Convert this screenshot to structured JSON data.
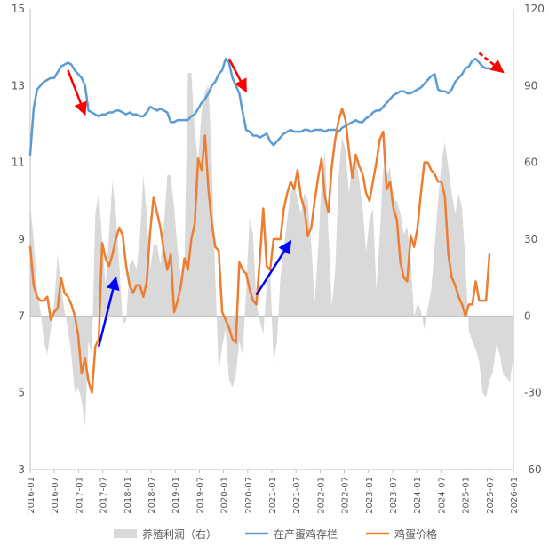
{
  "chart_data": {
    "type": "combo",
    "x_labels": [
      "2016-01",
      "2016-07",
      "2017-01",
      "2017-07",
      "2018-01",
      "2018-07",
      "2019-01",
      "2019-07",
      "2020-01",
      "2020-07",
      "2021-01",
      "2021-07",
      "2022-01",
      "2022-07",
      "2023-01",
      "2023-07",
      "2024-01",
      "2024-07",
      "2025-01",
      "2025-07",
      "2026-01"
    ],
    "left_axis": {
      "min": 3,
      "max": 15,
      "ticks": [
        3,
        5,
        7,
        9,
        11,
        13,
        15
      ]
    },
    "right_axis": {
      "min": -60,
      "max": 120,
      "ticks": [
        -60,
        -30,
        0,
        30,
        60,
        90,
        120
      ]
    },
    "series": [
      {
        "name": "养殖利润（右）",
        "type": "area",
        "axis": "right",
        "color": "#d9d9d9",
        "values": [
          43,
          30,
          10,
          2,
          -10,
          -15,
          -5,
          5,
          24,
          12,
          2,
          -5,
          -15,
          -30,
          -28,
          -33,
          -43,
          -10,
          -15,
          40,
          48,
          30,
          12,
          32,
          53,
          40,
          20,
          -3,
          -2,
          20,
          22,
          18,
          30,
          55,
          40,
          18,
          28,
          28,
          20,
          35,
          55,
          55,
          42,
          26,
          15,
          20,
          95,
          95,
          72,
          60,
          80,
          88,
          90,
          60,
          15,
          -22,
          -12,
          -5,
          -25,
          -28,
          -23,
          -10,
          -15,
          10,
          38,
          32,
          5,
          -2,
          -7,
          12,
          18,
          -18,
          -10,
          15,
          27,
          38,
          48,
          52,
          46,
          40,
          48,
          45,
          28,
          5,
          26,
          52,
          65,
          33,
          4,
          18,
          55,
          70,
          65,
          48,
          60,
          62,
          53,
          42,
          25,
          38,
          42,
          10,
          32,
          58,
          55,
          58,
          45,
          45,
          40,
          32,
          35,
          22,
          0,
          5,
          2,
          -5,
          3,
          10,
          27,
          45,
          60,
          68,
          58,
          48,
          40,
          48,
          42,
          20,
          -6,
          -10,
          -13,
          -18,
          -30,
          -32,
          -25,
          -22,
          -11,
          -15,
          -23,
          -24,
          -26,
          -15
        ]
      },
      {
        "name": "在产蛋鸡存栏",
        "type": "line",
        "axis": "left",
        "color": "#5b9bd5",
        "values": [
          11.2,
          12.4,
          12.9,
          13.0,
          13.1,
          13.15,
          13.2,
          13.2,
          13.35,
          13.5,
          13.55,
          13.6,
          13.55,
          13.4,
          13.3,
          13.2,
          13.0,
          12.35,
          12.3,
          12.25,
          12.2,
          12.25,
          12.25,
          12.3,
          12.3,
          12.35,
          12.35,
          12.3,
          12.25,
          12.3,
          12.25,
          12.25,
          12.2,
          12.2,
          12.3,
          12.45,
          12.4,
          12.35,
          12.4,
          12.35,
          12.3,
          12.05,
          12.05,
          12.1,
          12.1,
          12.1,
          12.1,
          12.2,
          12.25,
          12.4,
          12.55,
          12.65,
          12.8,
          13.0,
          13.1,
          13.3,
          13.4,
          13.7,
          13.6,
          13.2,
          13.0,
          12.8,
          12.3,
          11.85,
          11.8,
          11.7,
          11.7,
          11.65,
          11.7,
          11.75,
          11.55,
          11.45,
          11.55,
          11.65,
          11.75,
          11.8,
          11.85,
          11.8,
          11.8,
          11.8,
          11.85,
          11.85,
          11.8,
          11.85,
          11.85,
          11.85,
          11.8,
          11.85,
          11.85,
          11.85,
          11.8,
          11.9,
          11.95,
          12.0,
          12.05,
          12.1,
          12.05,
          12.05,
          12.15,
          12.2,
          12.3,
          12.35,
          12.35,
          12.45,
          12.55,
          12.65,
          12.75,
          12.8,
          12.85,
          12.85,
          12.8,
          12.8,
          12.85,
          12.9,
          12.95,
          13.05,
          13.15,
          13.25,
          13.3,
          12.9,
          12.85,
          12.85,
          12.8,
          12.9,
          13.1,
          13.2,
          13.3,
          13.45,
          13.5,
          13.65,
          13.7,
          13.6,
          13.5,
          13.45,
          13.45
        ]
      },
      {
        "name": "鸡蛋价格",
        "type": "line",
        "axis": "left",
        "color": "#ed7d31",
        "values": [
          8.8,
          7.8,
          7.5,
          7.4,
          7.4,
          7.5,
          6.9,
          7.1,
          7.2,
          8.0,
          7.6,
          7.5,
          7.3,
          7.0,
          6.5,
          5.5,
          5.9,
          5.3,
          5.0,
          6.2,
          6.4,
          8.9,
          8.5,
          8.3,
          8.6,
          9.0,
          9.3,
          9.1,
          8.3,
          7.8,
          7.6,
          7.8,
          7.8,
          7.5,
          7.9,
          9.2,
          10.1,
          9.7,
          9.3,
          8.7,
          8.2,
          8.6,
          7.1,
          7.4,
          7.8,
          8.5,
          8.2,
          9.0,
          9.4,
          11.1,
          10.8,
          11.7,
          10.3,
          9.4,
          8.8,
          8.7,
          7.1,
          6.9,
          6.7,
          6.4,
          6.3,
          8.4,
          8.2,
          8.1,
          7.7,
          7.4,
          7.3,
          8.5,
          9.8,
          8.3,
          8.2,
          9.0,
          9.0,
          9.0,
          9.8,
          10.2,
          10.5,
          10.3,
          10.8,
          10.1,
          9.8,
          9.1,
          9.3,
          10.0,
          10.6,
          11.1,
          10.1,
          9.7,
          10.9,
          11.6,
          12.1,
          12.4,
          12.1,
          11.3,
          10.6,
          11.2,
          10.9,
          10.7,
          10.2,
          10.0,
          10.5,
          11.0,
          11.6,
          11.8,
          10.3,
          10.5,
          9.8,
          9.5,
          8.4,
          8.0,
          7.9,
          9.1,
          8.8,
          9.3,
          10.2,
          11.0,
          11.0,
          10.8,
          10.7,
          10.5,
          10.5,
          10.1,
          8.6,
          8.0,
          7.8,
          7.5,
          7.3,
          7.0,
          7.3,
          7.3,
          7.9,
          7.4,
          7.4,
          7.4,
          8.6
        ]
      }
    ],
    "annotations": [
      {
        "type": "arrow",
        "color": "#ff0000",
        "style": "solid",
        "x1": 11,
        "y1": 13.4,
        "x2": 16,
        "y2": 12.25
      },
      {
        "type": "arrow",
        "color": "#0000ff",
        "style": "solid",
        "x1": 20,
        "y1": 6.2,
        "x2": 25,
        "y2": 8.0
      },
      {
        "type": "arrow",
        "color": "#ff0000",
        "style": "solid",
        "x1": 58,
        "y1": 13.7,
        "x2": 63,
        "y2": 12.85
      },
      {
        "type": "arrow",
        "color": "#0000ff",
        "style": "solid",
        "x1": 66,
        "y1": 7.55,
        "x2": 76,
        "y2": 8.95
      },
      {
        "type": "arrow",
        "color": "#ff0000",
        "style": "dashed",
        "x1": 131,
        "y1": 13.85,
        "x2": 138,
        "y2": 13.35
      }
    ],
    "legend": [
      "养殖利润（右）",
      "在产蛋鸡存栏",
      "鸡蛋价格"
    ],
    "grid": false
  }
}
